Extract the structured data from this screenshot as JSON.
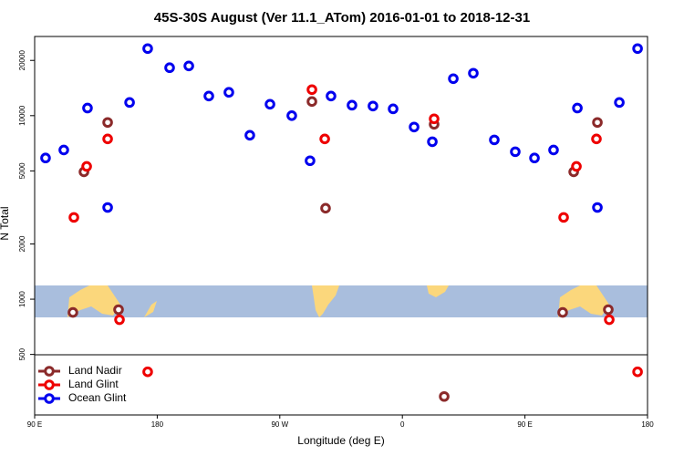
{
  "chart_data": {
    "type": "scatter",
    "title": "45S-30S August (Ver 11.1_ATom)   2016-01-01 to 2018-12-31",
    "x_label": "Longitude (deg E)",
    "y_label": "N Total",
    "y_log": true,
    "xlim": [
      90,
      540
    ],
    "ylim": [
      234,
      27000
    ],
    "xticks": [
      {
        "value": 90,
        "label": "90 E"
      },
      180,
      {
        "value": 270,
        "label": "90 W"
      },
      {
        "value": 360,
        "label": "0"
      },
      {
        "value": 450,
        "label": "90 E"
      },
      {
        "value": 540,
        "label": "180"
      }
    ],
    "yticks": [
      500,
      1000,
      2000,
      5000,
      10000,
      20000
    ],
    "legend": "bottom left",
    "series": [
      {
        "name": "Land Nadir",
        "color": "#8b2a2a",
        "x": [
          118.1,
          126.2,
          143.6,
          151.6,
          293.6,
          303.6,
          383.3,
          390.7,
          477.7,
          485.8,
          503.2,
          511.2
        ],
        "values": [
          847,
          4940,
          9180,
          877,
          11940,
          3130,
          8970,
          295,
          847,
          4940,
          9180,
          877
        ]
      },
      {
        "name": "Land Glint",
        "color": "#ee0000",
        "x": [
          118.8,
          128.2,
          143.6,
          152.3,
          173.0,
          293.6,
          303.0,
          383.3,
          478.4,
          487.8,
          502.5,
          511.9,
          532.7
        ],
        "values": [
          2790,
          5290,
          7470,
          773,
          402,
          13860,
          7470,
          9610,
          2790,
          5290,
          7470,
          773,
          402
        ]
      },
      {
        "name": "Ocean Glint",
        "color": "#0000ee",
        "x": [
          98.0,
          111.4,
          128.8,
          143.6,
          159.7,
          173.0,
          189.1,
          203.2,
          217.9,
          232.6,
          248.0,
          262.8,
          278.8,
          292.2,
          307.6,
          323.0,
          338.4,
          353.2,
          368.6,
          382.0,
          397.4,
          412.1,
          427.5,
          442.9,
          457.0,
          471.0,
          488.5,
          503.2,
          519.3,
          532.7
        ],
        "values": [
          5880,
          6500,
          11000,
          3160,
          11800,
          23200,
          18250,
          18660,
          12790,
          13400,
          7820,
          11540,
          10000,
          5680,
          12790,
          11400,
          11280,
          10890,
          8670,
          7210,
          15900,
          17030,
          7380,
          6360,
          5880,
          6500,
          11000,
          3160,
          11800,
          23200
        ]
      }
    ]
  }
}
